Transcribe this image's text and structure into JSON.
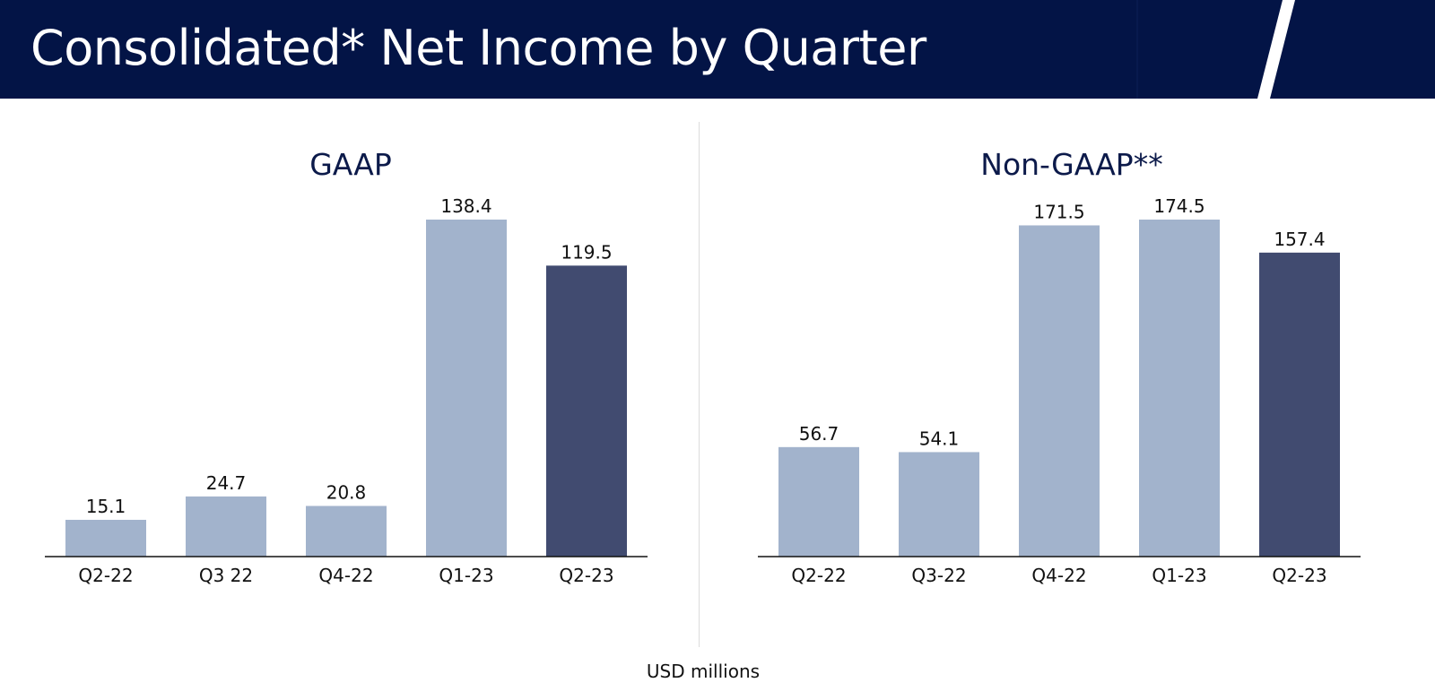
{
  "header": {
    "title": "Consolidated* Net Income by Quarter",
    "background": "#031446"
  },
  "footer": {
    "unit": "USD millions"
  },
  "colors": {
    "past_bar": "#a2b3cc",
    "current_bar": "#414b70"
  },
  "chart_data": [
    {
      "type": "bar",
      "title": "GAAP",
      "categories": [
        "Q2-22",
        "Q3 22",
        "Q4-22",
        "Q1-23",
        "Q2-23"
      ],
      "values": [
        15.1,
        24.7,
        20.8,
        138.4,
        119.5
      ],
      "value_labels": [
        "15.1",
        "24.7",
        "20.8",
        "138.4",
        "119.5"
      ],
      "highlight_index": 4,
      "ylim": [
        0,
        138.4
      ],
      "grid": false,
      "xlabel": "",
      "ylabel": ""
    },
    {
      "type": "bar",
      "title": "Non-GAAP**",
      "categories": [
        "Q2-22",
        "Q3-22",
        "Q4-22",
        "Q1-23",
        "Q2-23"
      ],
      "values": [
        56.7,
        54.1,
        171.5,
        174.5,
        157.4
      ],
      "value_labels": [
        "56.7",
        "54.1",
        "171.5",
        "174.5",
        "157.4"
      ],
      "highlight_index": 4,
      "ylim": [
        0,
        174.5
      ],
      "grid": false,
      "xlabel": "",
      "ylabel": ""
    }
  ]
}
